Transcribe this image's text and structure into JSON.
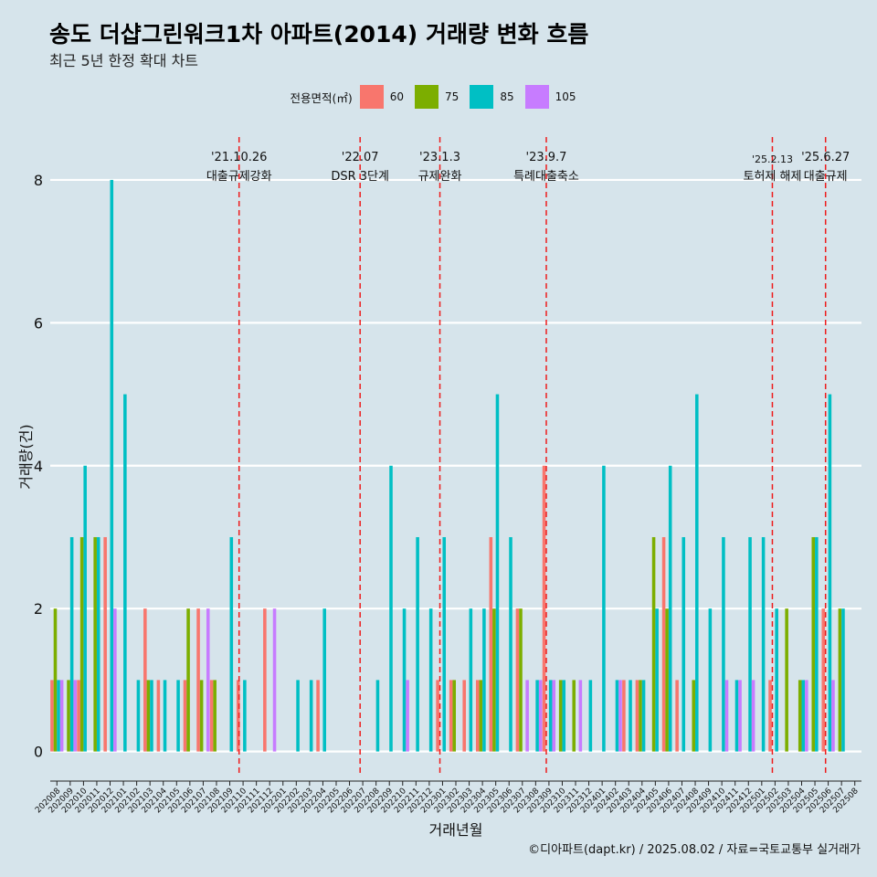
{
  "title": "송도 더샵그린워크1차 아파트(2014) 거래량 변화 흐름",
  "subtitle": "최근 5년 한정 확대 차트",
  "credit": "©디아파트(dapt.kr) / 2025.08.02 / 자료=국토교통부 실거래가",
  "legend": {
    "title": "전용면적(㎡)",
    "items": [
      {
        "label": "60",
        "color": "#f8766d"
      },
      {
        "label": "75",
        "color": "#7cae00"
      },
      {
        "label": "85",
        "color": "#00bfc4"
      },
      {
        "label": "105",
        "color": "#c77cff"
      }
    ]
  },
  "chart_data": {
    "type": "bar",
    "xlabel": "거래년월",
    "ylabel": "거래량(건)",
    "ylim": [
      -0.35,
      8.6
    ],
    "yticks": [
      0,
      2,
      4,
      6,
      8
    ],
    "grid": true,
    "legend_position": "top",
    "categories": [
      "202008",
      "202009",
      "202010",
      "202011",
      "202012",
      "202101",
      "202102",
      "202103",
      "202104",
      "202105",
      "202106",
      "202107",
      "202108",
      "202109",
      "202110",
      "202111",
      "202112",
      "202201",
      "202202",
      "202203",
      "202204",
      "202205",
      "202206",
      "202207",
      "202208",
      "202209",
      "202210",
      "202211",
      "202212",
      "202301",
      "202302",
      "202303",
      "202304",
      "202305",
      "202306",
      "202307",
      "202308",
      "202309",
      "202310",
      "202311",
      "202312",
      "202401",
      "202402",
      "202403",
      "202404",
      "202405",
      "202406",
      "202407",
      "202408",
      "202409",
      "202410",
      "202411",
      "202412",
      "202501",
      "202502",
      "202503",
      "202504",
      "202505",
      "202506",
      "202507",
      "202508"
    ],
    "series": [
      {
        "name": "60",
        "color": "#f8766d",
        "values": [
          1,
          0,
          1,
          0,
          3,
          0,
          0,
          2,
          1,
          0,
          1,
          2,
          1,
          0,
          1,
          0,
          2,
          0,
          0,
          0,
          1,
          0,
          0,
          0,
          0,
          0,
          0,
          0,
          0,
          1,
          1,
          1,
          1,
          3,
          0,
          2,
          0,
          4,
          0,
          0,
          0,
          0,
          0,
          1,
          1,
          0,
          3,
          1,
          0,
          0,
          0,
          0,
          0,
          0,
          1,
          0,
          0,
          0,
          2,
          0,
          0
        ]
      },
      {
        "name": "75",
        "color": "#7cae00",
        "values": [
          2,
          1,
          3,
          3,
          0,
          0,
          0,
          1,
          0,
          0,
          2,
          1,
          1,
          0,
          0,
          0,
          0,
          0,
          0,
          0,
          0,
          0,
          0,
          0,
          0,
          0,
          0,
          0,
          0,
          0,
          1,
          0,
          1,
          2,
          0,
          2,
          0,
          0,
          1,
          1,
          0,
          0,
          0,
          0,
          1,
          3,
          2,
          0,
          1,
          0,
          0,
          0,
          0,
          0,
          0,
          2,
          1,
          3,
          0,
          2,
          0
        ]
      },
      {
        "name": "85",
        "color": "#00bfc4",
        "values": [
          1,
          3,
          4,
          3,
          8,
          5,
          1,
          1,
          1,
          1,
          0,
          0,
          0,
          3,
          1,
          0,
          0,
          0,
          1,
          1,
          2,
          0,
          0,
          0,
          1,
          4,
          2,
          3,
          2,
          3,
          0,
          2,
          2,
          5,
          3,
          0,
          1,
          1,
          1,
          0,
          1,
          4,
          1,
          1,
          1,
          2,
          4,
          3,
          5,
          2,
          3,
          1,
          3,
          3,
          2,
          0,
          1,
          3,
          5,
          2,
          0
        ]
      },
      {
        "name": "105",
        "color": "#c77cff",
        "values": [
          1,
          1,
          0,
          0,
          2,
          0,
          0,
          0,
          0,
          0,
          0,
          2,
          0,
          0,
          0,
          0,
          2,
          0,
          0,
          0,
          0,
          0,
          0,
          0,
          0,
          0,
          1,
          0,
          0,
          0,
          0,
          0,
          0,
          0,
          0,
          1,
          1,
          1,
          0,
          1,
          0,
          0,
          1,
          0,
          0,
          0,
          0,
          0,
          0,
          0,
          1,
          1,
          1,
          0,
          0,
          0,
          1,
          0,
          1,
          0,
          0
        ]
      }
    ],
    "events": [
      {
        "date": "'21.10.26",
        "label": "대출규제강화"
      },
      {
        "date": "'22.07",
        "label": "DSR 3단계"
      },
      {
        "date": "'23.1.3",
        "label": "규제완화"
      },
      {
        "date": "'23.9.7",
        "label": "특례대출축소"
      },
      {
        "date": "'25.2.13",
        "label": "토허제 해제"
      },
      {
        "date": "'25.6.27",
        "label": "대출규제"
      }
    ],
    "event_positions": [
      14.2,
      23.3,
      29.3,
      37.3,
      54.3,
      58.3
    ]
  }
}
